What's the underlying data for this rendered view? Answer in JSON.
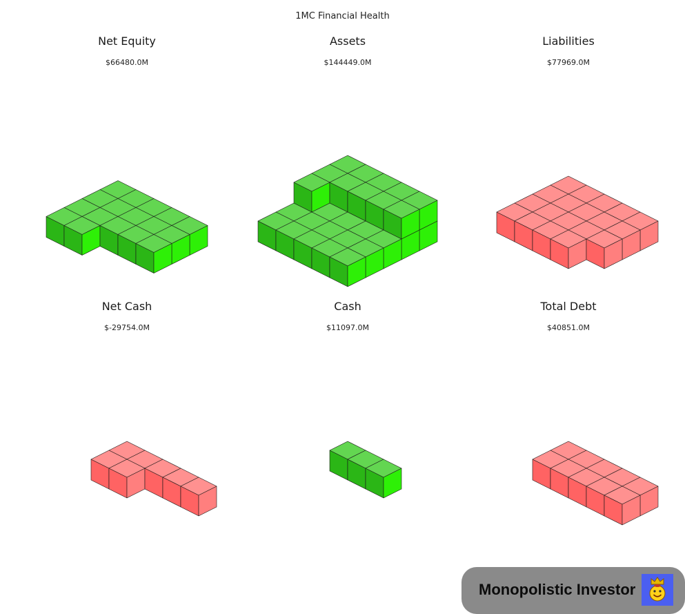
{
  "page_title": "1MC Financial Health",
  "branding": {
    "name": "Monopolistic Investor",
    "logo_icon": "smiling-king-icon"
  },
  "colors": {
    "positive": {
      "top": "#63d651",
      "left": "#2bb616",
      "right": "#2ef007"
    },
    "negative": {
      "top": "#ff9190",
      "left": "#ff6363",
      "right": "#ff7f7e"
    },
    "edge": "#1a1a1a",
    "badge_bg": "#8a8a8a",
    "logo_bg": "#4b5ff0"
  },
  "chart_data": [
    {
      "type": "isometric-cube-stack",
      "title": "Net Equity",
      "value_label": "$66480.0M",
      "value": 66480.0,
      "unit": "$M",
      "sign": "positive"
    },
    {
      "type": "isometric-cube-stack",
      "title": "Assets",
      "value_label": "$144449.0M",
      "value": 144449.0,
      "unit": "$M",
      "sign": "positive"
    },
    {
      "type": "isometric-cube-stack",
      "title": "Liabilities",
      "value_label": "$77969.0M",
      "value": 77969.0,
      "unit": "$M",
      "sign": "negative"
    },
    {
      "type": "isometric-cube-stack",
      "title": "Net Cash",
      "value_label": "$-29754.0M",
      "value": -29754.0,
      "unit": "$M",
      "sign": "negative"
    },
    {
      "type": "isometric-cube-stack",
      "title": "Cash",
      "value_label": "$11097.0M",
      "value": 11097.0,
      "unit": "$M",
      "sign": "positive"
    },
    {
      "type": "isometric-cube-stack",
      "title": "Total Debt",
      "value_label": "$40851.0M",
      "value": 40851.0,
      "unit": "$M",
      "sign": "negative"
    }
  ]
}
